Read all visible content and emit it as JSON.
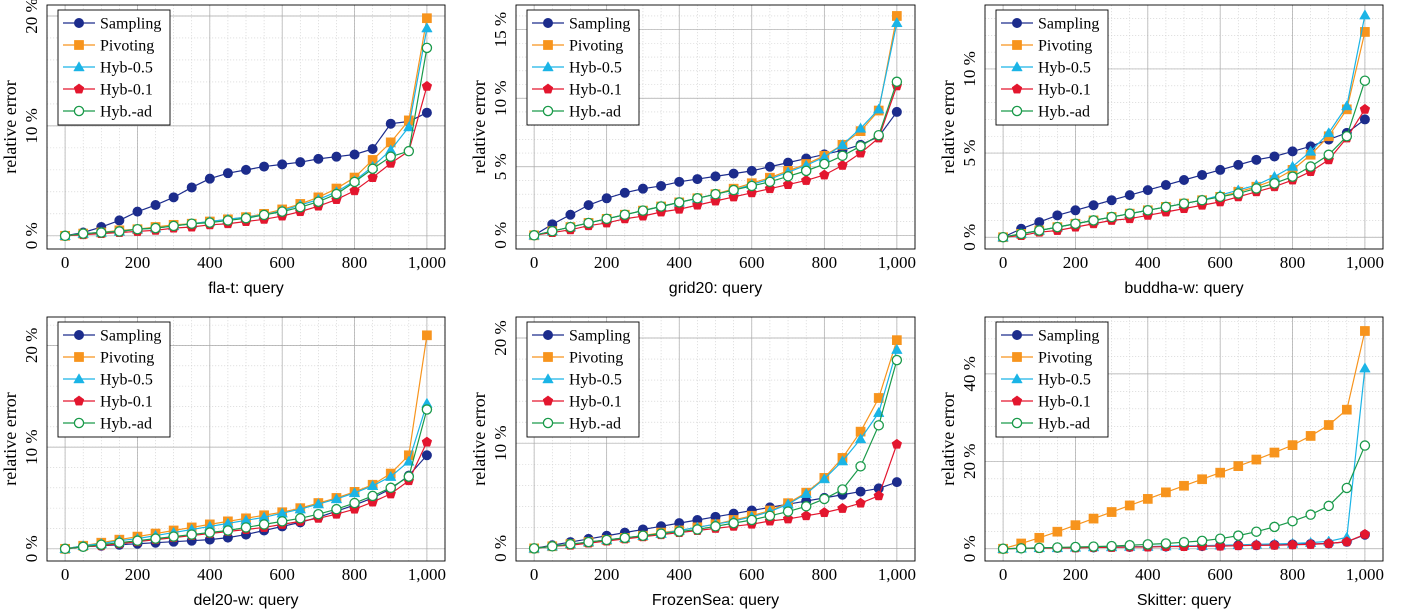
{
  "legend": [
    "Sampling",
    "Pivoting",
    "Hyb-0.5",
    "Hyb-0.1",
    "Hyb.-ad"
  ],
  "colors": {
    "Sampling": "#1c2c8c",
    "Pivoting": "#f7941d",
    "Hyb-0.5": "#1ab4e6",
    "Hyb-0.1": "#e3162e",
    "Hyb.-ad": "#1a9a4a"
  },
  "markers": {
    "Sampling": "circle",
    "Pivoting": "square",
    "Hyb-0.5": "triangle",
    "Hyb-0.1": "pentagon",
    "Hyb.-ad": "open-circle"
  },
  "chart_data": [
    {
      "type": "line",
      "xlabel": "fla-t: query",
      "ylabel": "relative error",
      "xlim": [
        -50,
        1050
      ],
      "ylim": [
        -1.2,
        21
      ],
      "xticks": [
        0,
        200,
        400,
        600,
        800,
        1000
      ],
      "xtick_labels": [
        "0",
        "200",
        "400",
        "600",
        "800",
        "1,000"
      ],
      "yticks": [
        0,
        10,
        20
      ],
      "ytick_labels": [
        "0 %",
        "10 %",
        "20 %"
      ],
      "x": [
        0,
        50,
        100,
        150,
        200,
        250,
        300,
        350,
        400,
        450,
        500,
        550,
        600,
        650,
        700,
        750,
        800,
        850,
        900,
        950,
        1000
      ],
      "series": [
        {
          "name": "Sampling",
          "values": [
            0,
            0.3,
            0.8,
            1.4,
            2.2,
            2.8,
            3.5,
            4.4,
            5.2,
            5.7,
            6.0,
            6.3,
            6.5,
            6.7,
            7.0,
            7.2,
            7.4,
            7.9,
            10.2,
            10.4,
            11.2
          ]
        },
        {
          "name": "Pivoting",
          "values": [
            0,
            0.2,
            0.3,
            0.5,
            0.6,
            0.8,
            1.0,
            1.1,
            1.3,
            1.5,
            1.7,
            2.0,
            2.4,
            2.9,
            3.5,
            4.3,
            5.3,
            6.9,
            8.5,
            10.5,
            19.8
          ]
        },
        {
          "name": "Hyb-0.5",
          "values": [
            0,
            0.2,
            0.3,
            0.4,
            0.6,
            0.7,
            0.9,
            1.1,
            1.3,
            1.5,
            1.7,
            1.9,
            2.3,
            2.8,
            3.3,
            4.0,
            5.0,
            6.3,
            7.8,
            9.9,
            18.9
          ]
        },
        {
          "name": "Hyb-0.1",
          "values": [
            0,
            0.1,
            0.2,
            0.3,
            0.4,
            0.5,
            0.7,
            0.8,
            1.0,
            1.1,
            1.3,
            1.5,
            1.8,
            2.2,
            2.7,
            3.3,
            4.1,
            5.3,
            6.6,
            7.7,
            13.6
          ]
        },
        {
          "name": "Hyb.-ad",
          "values": [
            0,
            0.2,
            0.3,
            0.4,
            0.6,
            0.7,
            0.9,
            1.1,
            1.2,
            1.4,
            1.6,
            1.9,
            2.2,
            2.6,
            3.1,
            3.8,
            4.9,
            6.1,
            7.2,
            7.7,
            17.1
          ]
        }
      ]
    },
    {
      "type": "line",
      "xlabel": "grid20: query",
      "ylabel": "relative error",
      "xlim": [
        -50,
        1050
      ],
      "ylim": [
        -1.0,
        16.8
      ],
      "xticks": [
        0,
        200,
        400,
        600,
        800,
        1000
      ],
      "xtick_labels": [
        "0",
        "200",
        "400",
        "600",
        "800",
        "1,000"
      ],
      "yticks": [
        0,
        5,
        10,
        15
      ],
      "ytick_labels": [
        "0 %",
        "5 %",
        "10 %",
        "15 %"
      ],
      "x": [
        0,
        50,
        100,
        150,
        200,
        250,
        300,
        350,
        400,
        450,
        500,
        550,
        600,
        650,
        700,
        750,
        800,
        850,
        900,
        950,
        1000
      ],
      "series": [
        {
          "name": "Sampling",
          "values": [
            0,
            0.8,
            1.5,
            2.2,
            2.7,
            3.1,
            3.4,
            3.6,
            3.9,
            4.1,
            4.3,
            4.5,
            4.7,
            5.0,
            5.3,
            5.6,
            5.9,
            6.2,
            6.6,
            7.2,
            9.0
          ]
        },
        {
          "name": "Pivoting",
          "values": [
            0,
            0.3,
            0.6,
            0.9,
            1.2,
            1.5,
            1.8,
            2.1,
            2.4,
            2.7,
            3.0,
            3.4,
            3.8,
            4.2,
            4.7,
            5.2,
            5.8,
            6.6,
            7.6,
            9.1,
            16.0
          ]
        },
        {
          "name": "Hyb-0.5",
          "values": [
            0,
            0.3,
            0.6,
            0.9,
            1.2,
            1.5,
            1.8,
            2.1,
            2.4,
            2.7,
            3.0,
            3.3,
            3.7,
            4.1,
            4.6,
            5.1,
            5.7,
            6.6,
            7.8,
            9.2,
            15.5
          ]
        },
        {
          "name": "Hyb-0.1",
          "values": [
            0,
            0.2,
            0.4,
            0.7,
            0.9,
            1.2,
            1.4,
            1.7,
            1.9,
            2.2,
            2.5,
            2.8,
            3.1,
            3.4,
            3.7,
            4.0,
            4.4,
            5.1,
            6.0,
            7.1,
            10.9
          ]
        },
        {
          "name": "Hyb.-ad",
          "values": [
            0,
            0.3,
            0.6,
            0.9,
            1.2,
            1.5,
            1.8,
            2.1,
            2.4,
            2.7,
            3.0,
            3.3,
            3.6,
            3.9,
            4.3,
            4.7,
            5.2,
            5.8,
            6.5,
            7.3,
            11.2
          ]
        }
      ]
    },
    {
      "type": "line",
      "xlabel": "buddha-w: query",
      "ylabel": "relative error",
      "xlim": [
        -50,
        1050
      ],
      "ylim": [
        -0.7,
        13.8
      ],
      "xticks": [
        0,
        200,
        400,
        600,
        800,
        1000
      ],
      "xtick_labels": [
        "0",
        "200",
        "400",
        "600",
        "800",
        "1,000"
      ],
      "yticks": [
        0,
        5,
        10
      ],
      "ytick_labels": [
        "0 %",
        "5 %",
        "10 %"
      ],
      "x": [
        0,
        50,
        100,
        150,
        200,
        250,
        300,
        350,
        400,
        450,
        500,
        550,
        600,
        650,
        700,
        750,
        800,
        850,
        900,
        950,
        1000
      ],
      "series": [
        {
          "name": "Sampling",
          "values": [
            0,
            0.5,
            0.9,
            1.3,
            1.6,
            1.9,
            2.2,
            2.5,
            2.8,
            3.1,
            3.4,
            3.7,
            4.0,
            4.3,
            4.6,
            4.8,
            5.1,
            5.4,
            5.8,
            6.2,
            7.0
          ]
        },
        {
          "name": "Pivoting",
          "values": [
            0,
            0.2,
            0.4,
            0.6,
            0.8,
            1.0,
            1.2,
            1.4,
            1.6,
            1.8,
            2.0,
            2.2,
            2.4,
            2.7,
            3.0,
            3.4,
            4.0,
            4.9,
            6.0,
            7.6,
            12.2
          ]
        },
        {
          "name": "Hyb-0.5",
          "values": [
            0,
            0.2,
            0.4,
            0.6,
            0.8,
            1.0,
            1.2,
            1.4,
            1.6,
            1.8,
            2.0,
            2.2,
            2.5,
            2.8,
            3.1,
            3.6,
            4.2,
            5.1,
            6.2,
            7.8,
            13.2
          ]
        },
        {
          "name": "Hyb-0.1",
          "values": [
            0,
            0.1,
            0.3,
            0.4,
            0.6,
            0.8,
            1.0,
            1.1,
            1.3,
            1.5,
            1.7,
            1.9,
            2.1,
            2.4,
            2.7,
            3.0,
            3.4,
            3.9,
            4.6,
            5.9,
            7.6
          ]
        },
        {
          "name": "Hyb.-ad",
          "values": [
            0,
            0.2,
            0.4,
            0.6,
            0.8,
            1.0,
            1.2,
            1.4,
            1.6,
            1.8,
            2.0,
            2.2,
            2.4,
            2.6,
            2.9,
            3.2,
            3.6,
            4.2,
            4.9,
            6.0,
            9.3
          ]
        }
      ]
    },
    {
      "type": "line",
      "xlabel": "del20-w: query",
      "ylabel": "relative error",
      "xlim": [
        -50,
        1050
      ],
      "ylim": [
        -1.2,
        22.8
      ],
      "xticks": [
        0,
        200,
        400,
        600,
        800,
        1000
      ],
      "xtick_labels": [
        "0",
        "200",
        "400",
        "600",
        "800",
        "1,000"
      ],
      "yticks": [
        0,
        10,
        20
      ],
      "ytick_labels": [
        "0 %",
        "10 %",
        "20 %"
      ],
      "x": [
        0,
        50,
        100,
        150,
        200,
        250,
        300,
        350,
        400,
        450,
        500,
        550,
        600,
        650,
        700,
        750,
        800,
        850,
        900,
        950,
        1000
      ],
      "series": [
        {
          "name": "Sampling",
          "values": [
            0,
            0.2,
            0.3,
            0.4,
            0.5,
            0.6,
            0.7,
            0.8,
            0.9,
            1.1,
            1.4,
            1.8,
            2.2,
            2.6,
            3.1,
            3.7,
            4.3,
            5.0,
            5.9,
            7.2,
            9.2
          ]
        },
        {
          "name": "Pivoting",
          "values": [
            0,
            0.3,
            0.6,
            0.9,
            1.2,
            1.5,
            1.8,
            2.1,
            2.4,
            2.7,
            3.0,
            3.3,
            3.6,
            4.0,
            4.5,
            5.0,
            5.6,
            6.3,
            7.4,
            9.2,
            21.0
          ]
        },
        {
          "name": "Hyb-0.5",
          "values": [
            0,
            0.3,
            0.5,
            0.8,
            1.0,
            1.3,
            1.6,
            1.9,
            2.2,
            2.5,
            2.8,
            3.1,
            3.5,
            3.9,
            4.4,
            4.9,
            5.5,
            6.2,
            7.1,
            8.6,
            14.3
          ]
        },
        {
          "name": "Hyb-0.1",
          "values": [
            0,
            0.2,
            0.3,
            0.5,
            0.7,
            0.9,
            1.1,
            1.3,
            1.5,
            1.7,
            1.9,
            2.1,
            2.4,
            2.7,
            3.0,
            3.4,
            3.9,
            4.6,
            5.4,
            6.7,
            10.5
          ]
        },
        {
          "name": "Hyb.-ad",
          "values": [
            0,
            0.2,
            0.4,
            0.6,
            0.8,
            1.0,
            1.2,
            1.4,
            1.6,
            1.8,
            2.1,
            2.4,
            2.7,
            3.0,
            3.4,
            3.9,
            4.5,
            5.2,
            6.0,
            7.1,
            13.7
          ]
        }
      ]
    },
    {
      "type": "line",
      "xlabel": "FrozenSea: query",
      "ylabel": "relative error",
      "xlim": [
        -50,
        1050
      ],
      "ylim": [
        -1.2,
        22.0
      ],
      "xticks": [
        0,
        200,
        400,
        600,
        800,
        1000
      ],
      "xtick_labels": [
        "0",
        "200",
        "400",
        "600",
        "800",
        "1,000"
      ],
      "yticks": [
        0,
        10,
        20
      ],
      "ytick_labels": [
        "0 %",
        "10 %",
        "20 %"
      ],
      "x": [
        0,
        50,
        100,
        150,
        200,
        250,
        300,
        350,
        400,
        450,
        500,
        550,
        600,
        650,
        700,
        750,
        800,
        850,
        900,
        950,
        1000
      ],
      "series": [
        {
          "name": "Sampling",
          "values": [
            0,
            0.3,
            0.6,
            0.9,
            1.2,
            1.5,
            1.8,
            2.1,
            2.4,
            2.7,
            3.0,
            3.3,
            3.6,
            3.9,
            4.2,
            4.5,
            4.8,
            5.1,
            5.4,
            5.7,
            6.3
          ]
        },
        {
          "name": "Pivoting",
          "values": [
            0,
            0.2,
            0.4,
            0.6,
            0.8,
            1.0,
            1.2,
            1.5,
            1.7,
            2.0,
            2.3,
            2.7,
            3.1,
            3.6,
            4.3,
            5.3,
            6.7,
            8.6,
            11.1,
            14.3,
            19.8
          ]
        },
        {
          "name": "Hyb-0.5",
          "values": [
            0,
            0.2,
            0.4,
            0.6,
            0.8,
            1.0,
            1.2,
            1.4,
            1.7,
            2.0,
            2.3,
            2.6,
            3.0,
            3.5,
            4.2,
            5.2,
            6.6,
            8.3,
            10.4,
            12.9,
            18.9
          ]
        },
        {
          "name": "Hyb-0.1",
          "values": [
            0,
            0.2,
            0.3,
            0.5,
            0.7,
            0.9,
            1.1,
            1.3,
            1.5,
            1.7,
            1.9,
            2.1,
            2.3,
            2.6,
            2.8,
            3.1,
            3.4,
            3.8,
            4.3,
            5.0,
            9.9
          ]
        },
        {
          "name": "Hyb.-ad",
          "values": [
            0,
            0.2,
            0.4,
            0.6,
            0.8,
            1.0,
            1.2,
            1.4,
            1.6,
            1.8,
            2.1,
            2.4,
            2.7,
            3.1,
            3.5,
            4.0,
            4.7,
            5.6,
            7.8,
            11.7,
            17.9
          ]
        }
      ]
    },
    {
      "type": "line",
      "xlabel": "Skitter: query",
      "ylabel": "relative error",
      "xlim": [
        -50,
        1050
      ],
      "ylim": [
        -2.8,
        53.0
      ],
      "xticks": [
        0,
        200,
        400,
        600,
        800,
        1000
      ],
      "xtick_labels": [
        "0",
        "200",
        "400",
        "600",
        "800",
        "1,000"
      ],
      "yticks": [
        0,
        20,
        40
      ],
      "ytick_labels": [
        "0 %",
        "20 %",
        "40 %"
      ],
      "x": [
        0,
        50,
        100,
        150,
        200,
        250,
        300,
        350,
        400,
        450,
        500,
        550,
        600,
        650,
        700,
        750,
        800,
        850,
        900,
        950,
        1000
      ],
      "series": [
        {
          "name": "Sampling",
          "values": [
            0,
            0.1,
            0.2,
            0.2,
            0.3,
            0.3,
            0.4,
            0.4,
            0.5,
            0.5,
            0.6,
            0.6,
            0.7,
            0.8,
            0.8,
            0.9,
            1.0,
            1.1,
            1.2,
            1.6,
            3.2
          ]
        },
        {
          "name": "Pivoting",
          "values": [
            0,
            1.2,
            2.5,
            3.9,
            5.4,
            6.9,
            8.4,
            9.9,
            11.4,
            12.9,
            14.4,
            15.9,
            17.4,
            18.9,
            20.4,
            22.0,
            23.7,
            25.8,
            28.3,
            31.8,
            49.8
          ]
        },
        {
          "name": "Hyb-0.5",
          "values": [
            0,
            0.1,
            0.2,
            0.2,
            0.3,
            0.4,
            0.4,
            0.5,
            0.5,
            0.6,
            0.7,
            0.7,
            0.8,
            0.9,
            1.0,
            1.1,
            1.2,
            1.4,
            1.7,
            2.6,
            41.3
          ]
        },
        {
          "name": "Hyb-0.1",
          "values": [
            0,
            0.1,
            0.1,
            0.2,
            0.2,
            0.3,
            0.3,
            0.4,
            0.4,
            0.5,
            0.5,
            0.6,
            0.6,
            0.7,
            0.8,
            0.8,
            0.9,
            1.0,
            1.2,
            1.6,
            3.3
          ]
        },
        {
          "name": "Hyb.-ad",
          "values": [
            0,
            0.1,
            0.2,
            0.3,
            0.4,
            0.5,
            0.6,
            0.8,
            1.0,
            1.2,
            1.5,
            1.8,
            2.3,
            3.0,
            3.9,
            5.0,
            6.3,
            7.8,
            9.8,
            13.9,
            23.6
          ]
        }
      ]
    }
  ]
}
